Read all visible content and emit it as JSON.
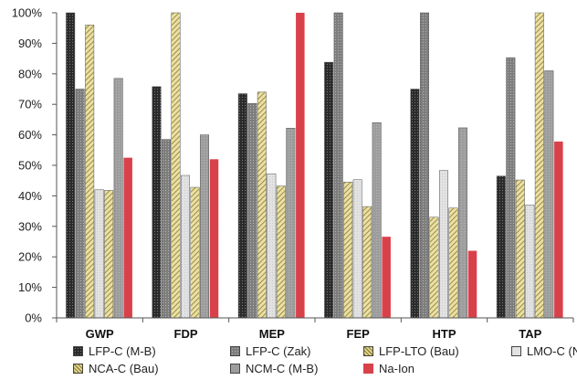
{
  "chart_data": {
    "type": "bar",
    "categories": [
      "GWP",
      "FDP",
      "MEP",
      "FEP",
      "HTP",
      "TAP"
    ],
    "ylim": [
      0,
      100
    ],
    "yticks": [
      "0%",
      "10%",
      "20%",
      "30%",
      "40%",
      "50%",
      "60%",
      "70%",
      "80%",
      "90%",
      "100%"
    ],
    "grid": false,
    "legend_position": "bottom",
    "series": [
      {
        "name": "LFP-C (M-B)",
        "color": "#333333",
        "pattern": "dark-dots",
        "values": [
          100,
          75.8,
          73.5,
          83.8,
          75,
          46.5
        ]
      },
      {
        "name": "LFP-C (Zak)",
        "color": "#8a8a8a",
        "pattern": "grey-dots",
        "values": [
          75,
          58.5,
          70.3,
          100,
          100,
          85.3
        ]
      },
      {
        "name": "LFP-LTO (Bau)",
        "color": "#c9bb6a",
        "pattern": "diagonal-hatch",
        "values": [
          96,
          100,
          74,
          44.5,
          33,
          45.2
        ]
      },
      {
        "name": "LMO-C (Not)",
        "color": "#dddddd",
        "pattern": "light-grey",
        "values": [
          42,
          46.7,
          47.2,
          45.3,
          48.3,
          37
        ]
      },
      {
        "name": "NCA-C (Bau)",
        "color": "#c9bb6a",
        "pattern": "diagonal-hatch",
        "values": [
          41.8,
          42.8,
          43.2,
          36.5,
          36,
          100
        ]
      },
      {
        "name": "NCM-C (M-B)",
        "color": "#9a9a9a",
        "pattern": "mid-grey",
        "values": [
          78.5,
          60,
          62.2,
          64,
          62.3,
          81
        ]
      },
      {
        "name": "Na-Ion",
        "color": "#d9414a",
        "pattern": "solid",
        "values": [
          52.5,
          52,
          100,
          26.6,
          22,
          57.8
        ]
      }
    ]
  }
}
